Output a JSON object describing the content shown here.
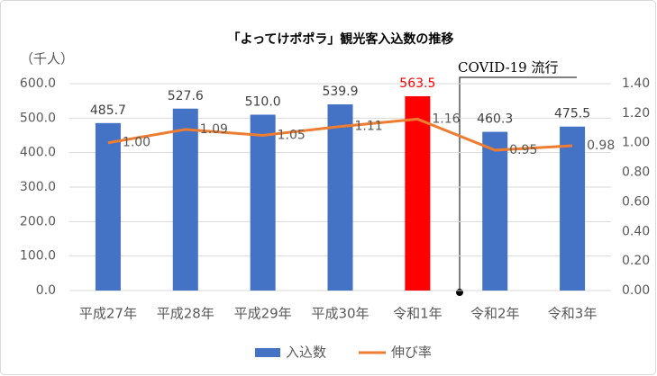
{
  "chart_data": {
    "type": "bar_line",
    "title": "「よってけポポラ」観光客入込数の推移",
    "y_label": "（千人）",
    "annotation": "COVID-19 流行",
    "categories": [
      "平成27年",
      "平成28年",
      "平成29年",
      "平成30年",
      "令和1年",
      "令和2年",
      "令和3年"
    ],
    "series": [
      {
        "name": "入込数",
        "color": "#4472c4",
        "colors": [
          "#4472c4",
          "#4472c4",
          "#4472c4",
          "#4472c4",
          "#ff0000",
          "#4472c4",
          "#4472c4"
        ],
        "label_colors": [
          "#404040",
          "#404040",
          "#404040",
          "#404040",
          "#ff0000",
          "#404040",
          "#404040"
        ],
        "values": [
          485.7,
          527.6,
          510.0,
          539.9,
          563.5,
          460.3,
          475.5
        ],
        "value_labels": [
          "485.7",
          "527.6",
          "510.0",
          "539.9",
          "563.5",
          "460.3",
          "475.5"
        ]
      },
      {
        "name": "伸び率",
        "color": "#ed7d31",
        "axis": "y2",
        "values": [
          1.0,
          1.09,
          1.05,
          1.11,
          1.16,
          0.95,
          0.98
        ],
        "value_labels": [
          "1.00",
          "1.09",
          "1.05",
          "1.11",
          "1.16",
          "0.95",
          "0.98"
        ]
      }
    ],
    "ylim": [
      0,
      600
    ],
    "yticks": [
      {
        "value": 0,
        "label": "0.0"
      },
      {
        "value": 100,
        "label": "100.0"
      },
      {
        "value": 200,
        "label": "200.0"
      },
      {
        "value": 300,
        "label": "300.0"
      },
      {
        "value": 400,
        "label": "400.0"
      },
      {
        "value": 500,
        "label": "500.0"
      },
      {
        "value": 600,
        "label": "600.0"
      }
    ],
    "y2lim": [
      0,
      1.4
    ],
    "y2ticks": [
      {
        "value": 0,
        "label": "0.00"
      },
      {
        "value": 0.2,
        "label": "0.20"
      },
      {
        "value": 0.4,
        "label": "0.40"
      },
      {
        "value": 0.6,
        "label": "0.60"
      },
      {
        "value": 0.8,
        "label": "0.80"
      },
      {
        "value": 1.0,
        "label": "1.00"
      },
      {
        "value": 1.2,
        "label": "1.20"
      },
      {
        "value": 1.4,
        "label": "1.40"
      }
    ],
    "grid": true,
    "legend": "bottom"
  }
}
